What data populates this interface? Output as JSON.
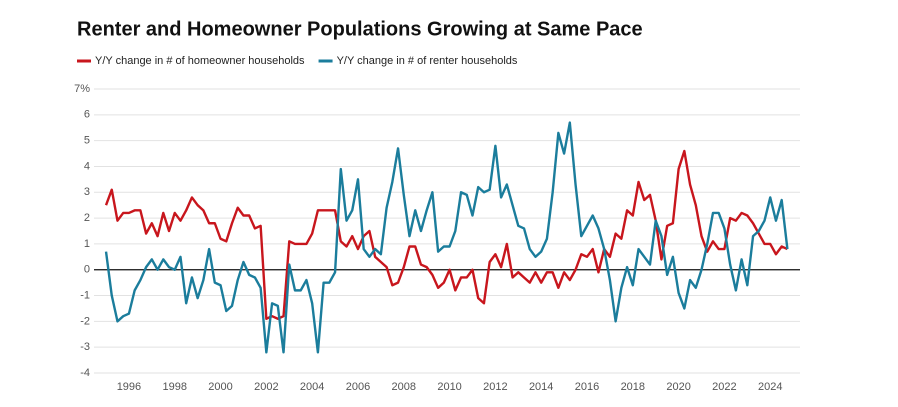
{
  "chart_data": {
    "type": "line",
    "title": "Renter and Homeowner Populations Growing at Same Pace",
    "x": [
      1995,
      1995.25,
      1995.5,
      1995.75,
      1996,
      1996.25,
      1996.5,
      1996.75,
      1997,
      1997.25,
      1997.5,
      1997.75,
      1998,
      1998.25,
      1998.5,
      1998.75,
      1999,
      1999.25,
      1999.5,
      1999.75,
      2000,
      2000.25,
      2000.5,
      2000.75,
      2001,
      2001.25,
      2001.5,
      2001.75,
      2002,
      2002.25,
      2002.5,
      2002.75,
      2003,
      2003.25,
      2003.5,
      2003.75,
      2004,
      2004.25,
      2004.5,
      2004.75,
      2005,
      2005.25,
      2005.5,
      2005.75,
      2006,
      2006.25,
      2006.5,
      2006.75,
      2007,
      2007.25,
      2007.5,
      2007.75,
      2008,
      2008.25,
      2008.5,
      2008.75,
      2009,
      2009.25,
      2009.5,
      2009.75,
      2010,
      2010.25,
      2010.5,
      2010.75,
      2011,
      2011.25,
      2011.5,
      2011.75,
      2012,
      2012.25,
      2012.5,
      2012.75,
      2013,
      2013.25,
      2013.5,
      2013.75,
      2014,
      2014.25,
      2014.5,
      2014.75,
      2015,
      2015.25,
      2015.5,
      2015.75,
      2016,
      2016.25,
      2016.5,
      2016.75,
      2017,
      2017.25,
      2017.5,
      2017.75,
      2018,
      2018.25,
      2018.5,
      2018.75,
      2019,
      2019.25,
      2019.5,
      2019.75,
      2020,
      2020.25,
      2020.5,
      2020.75,
      2021,
      2021.25,
      2021.5,
      2021.75,
      2022,
      2022.25,
      2022.5,
      2022.75,
      2023,
      2023.25,
      2023.5,
      2023.75,
      2024,
      2024.25,
      2024.5,
      2024.75
    ],
    "series": [
      {
        "name": "Y/Y change in # of homeowner households",
        "color": "#c8161d",
        "values": [
          2.5,
          3.1,
          1.9,
          2.2,
          2.2,
          2.3,
          2.3,
          1.4,
          1.8,
          1.3,
          2.2,
          1.5,
          2.2,
          1.9,
          2.3,
          2.8,
          2.5,
          2.3,
          1.8,
          1.8,
          1.2,
          1.1,
          1.8,
          2.4,
          2.1,
          2.1,
          1.6,
          1.7,
          -1.9,
          -1.8,
          -1.9,
          -1.8,
          1.1,
          1.0,
          1.0,
          1.0,
          1.4,
          2.3,
          2.3,
          2.3,
          2.3,
          1.1,
          0.9,
          1.3,
          0.8,
          1.3,
          1.5,
          0.5,
          0.3,
          0.1,
          -0.6,
          -0.5,
          0.1,
          0.9,
          0.9,
          0.2,
          0.1,
          -0.2,
          -0.7,
          -0.5,
          0.0,
          -0.8,
          -0.3,
          -0.3,
          0.0,
          -1.1,
          -1.3,
          0.3,
          0.6,
          0.1,
          1.0,
          -0.3,
          -0.1,
          -0.3,
          -0.5,
          -0.1,
          -0.5,
          -0.1,
          -0.1,
          -0.7,
          -0.1,
          -0.4,
          0.0,
          0.6,
          0.5,
          0.8,
          -0.1,
          0.8,
          0.5,
          1.4,
          1.2,
          2.3,
          2.1,
          3.4,
          2.7,
          2.9,
          1.9,
          0.4,
          1.7,
          1.8,
          3.9,
          4.6,
          3.3,
          2.5,
          1.3,
          0.7,
          1.1,
          0.8,
          0.8,
          2.0,
          1.9,
          2.2,
          2.1,
          1.8,
          1.4,
          1.0,
          1.0,
          0.6,
          0.9,
          0.8
        ]
      },
      {
        "name": "Y/Y change in # of renter households",
        "color": "#1b7d9c",
        "values": [
          0.7,
          -1.0,
          -2.0,
          -1.8,
          -1.7,
          -0.8,
          -0.4,
          0.1,
          0.4,
          0.0,
          0.4,
          0.1,
          0.0,
          0.5,
          -1.3,
          -0.3,
          -1.1,
          -0.4,
          0.8,
          -0.5,
          -0.6,
          -1.6,
          -1.4,
          -0.4,
          0.3,
          -0.2,
          -0.3,
          -0.7,
          -3.2,
          -1.3,
          -1.4,
          -3.2,
          0.2,
          -0.8,
          -0.8,
          -0.4,
          -1.3,
          -3.2,
          -0.5,
          -0.5,
          -0.1,
          3.9,
          1.9,
          2.3,
          3.5,
          0.8,
          0.5,
          0.8,
          0.6,
          2.4,
          3.4,
          4.7,
          2.9,
          1.3,
          2.3,
          1.5,
          2.3,
          3.0,
          0.7,
          0.9,
          0.9,
          1.5,
          3.0,
          2.9,
          2.1,
          3.2,
          3.0,
          3.1,
          4.8,
          2.8,
          3.3,
          2.5,
          1.7,
          1.6,
          0.8,
          0.5,
          0.7,
          1.2,
          3.0,
          5.3,
          4.5,
          5.7,
          3.3,
          1.3,
          1.7,
          2.1,
          1.6,
          0.8,
          -0.4,
          -2.0,
          -0.7,
          0.1,
          -0.6,
          0.8,
          0.5,
          0.2,
          1.9,
          1.3,
          -0.2,
          0.5,
          -0.9,
          -1.5,
          -0.4,
          -0.7,
          0.0,
          1.0,
          2.2,
          2.2,
          1.6,
          0.2,
          -0.8,
          0.4,
          -0.6,
          1.3,
          1.5,
          1.9,
          2.8,
          1.9,
          2.7,
          0.8
        ]
      }
    ],
    "xlim": [
      1994.3,
      2025.3
    ],
    "xticks": [
      1996,
      1998,
      2000,
      2002,
      2004,
      2006,
      2008,
      2010,
      2012,
      2014,
      2016,
      2018,
      2020,
      2022,
      2024
    ],
    "ylim": [
      -4,
      7
    ],
    "yticks": [
      -4,
      -3,
      -2,
      -1,
      0,
      1,
      2,
      3,
      4,
      5,
      6,
      {
        "value": 7,
        "label": "7%"
      }
    ],
    "grid": true
  }
}
